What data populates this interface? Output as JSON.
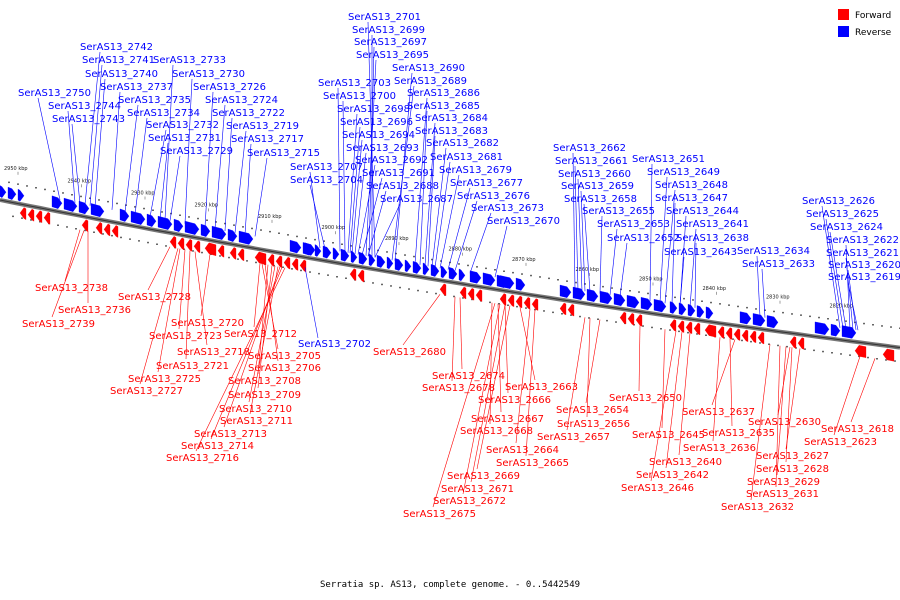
{
  "caption": "Serratia sp. AS13, complete genome. - 0..5442549",
  "legend": [
    {
      "label": "Forward",
      "color": "#ff0000"
    },
    {
      "label": "Reverse",
      "color": "#0000ff"
    }
  ],
  "colors": {
    "forward": "#ff0000",
    "reverse": "#0000ff",
    "backbone": "#555555",
    "minor": "#000000"
  },
  "ticks": [
    "2950 kbp",
    "2940 kbp",
    "2930 kbp",
    "2920 kbp",
    "2910 kbp",
    "2900 kbp",
    "2890 kbp",
    "2880 kbp",
    "2870 kbp",
    "2860 kbp",
    "2850 kbp",
    "2840 kbp",
    "2830 kbp",
    "2820 kbp"
  ],
  "reverse_labels": [
    "SerAS13_2701",
    "SerAS13_2699",
    "SerAS13_2697",
    "SerAS13_2695",
    "SerAS13_2690",
    "SerAS13_2689",
    "SerAS13_2742",
    "SerAS13_2741",
    "SerAS13_2733",
    "SerAS13_2740",
    "SerAS13_2730",
    "SerAS13_2737",
    "SerAS13_2726",
    "SerAS13_2750",
    "SerAS13_2735",
    "SerAS13_2724",
    "SerAS13_2744",
    "SerAS13_2734",
    "SerAS13_2722",
    "SerAS13_2743",
    "SerAS13_2732",
    "SerAS13_2719",
    "SerAS13_2731",
    "SerAS13_2717",
    "SerAS13_2729",
    "SerAS13_2715",
    "SerAS13_2703",
    "SerAS13_2700",
    "SerAS13_2698",
    "SerAS13_2696",
    "SerAS13_2694",
    "SerAS13_2693",
    "SerAS13_2692",
    "SerAS13_2691",
    "SerAS13_2688",
    "SerAS13_2687",
    "SerAS13_2707",
    "SerAS13_2704",
    "SerAS13_2686",
    "SerAS13_2685",
    "SerAS13_2684",
    "SerAS13_2683",
    "SerAS13_2682",
    "SerAS13_2681",
    "SerAS13_2679",
    "SerAS13_2677",
    "SerAS13_2676",
    "SerAS13_2673",
    "SerAS13_2670",
    "SerAS13_2662",
    "SerAS13_2661",
    "SerAS13_2660",
    "SerAS13_2659",
    "SerAS13_2658",
    "SerAS13_2655",
    "SerAS13_2653",
    "SerAS13_2652",
    "SerAS13_2651",
    "SerAS13_2649",
    "SerAS13_2648",
    "SerAS13_2647",
    "SerAS13_2644",
    "SerAS13_2641",
    "SerAS13_2638",
    "SerAS13_2643",
    "SerAS13_2634",
    "SerAS13_2633",
    "SerAS13_2626",
    "SerAS13_2625",
    "SerAS13_2624",
    "SerAS13_2622",
    "SerAS13_2621",
    "SerAS13_2620",
    "SerAS13_2619",
    "SerAS13_2702"
  ],
  "forward_labels": [
    "SerAS13_2738",
    "SerAS13_2736",
    "SerAS13_2739",
    "SerAS13_2728",
    "SerAS13_2720",
    "SerAS13_2723",
    "SerAS13_2718",
    "SerAS13_2721",
    "SerAS13_2725",
    "SerAS13_2727",
    "SerAS13_2712",
    "SerAS13_2705",
    "SerAS13_2706",
    "SerAS13_2708",
    "SerAS13_2709",
    "SerAS13_2710",
    "SerAS13_2711",
    "SerAS13_2713",
    "SerAS13_2714",
    "SerAS13_2716",
    "SerAS13_2680",
    "SerAS13_2674",
    "SerAS13_2678",
    "SerAS13_2663",
    "SerAS13_2666",
    "SerAS13_2667",
    "SerAS13_2668",
    "SerAS13_2664",
    "SerAS13_2665",
    "SerAS13_2669",
    "SerAS13_2671",
    "SerAS13_2672",
    "SerAS13_2675",
    "SerAS13_2654",
    "SerAS13_2656",
    "SerAS13_2657",
    "SerAS13_2650",
    "SerAS13_2645",
    "SerAS13_2640",
    "SerAS13_2642",
    "SerAS13_2646",
    "SerAS13_2637",
    "SerAS13_2635",
    "SerAS13_2636",
    "SerAS13_2630",
    "SerAS13_2627",
    "SerAS13_2628",
    "SerAS13_2629",
    "SerAS13_2631",
    "SerAS13_2632",
    "SerAS13_2618",
    "SerAS13_2623"
  ]
}
